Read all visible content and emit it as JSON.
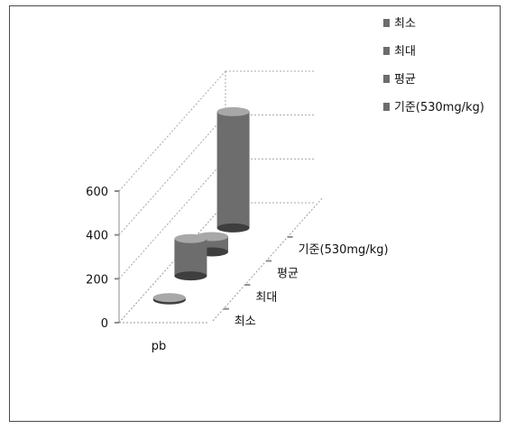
{
  "chart_data": {
    "type": "bar",
    "variant": "3d-cylinder",
    "categories": [
      "pb"
    ],
    "series": [
      {
        "name": "최소",
        "values": [
          10
        ]
      },
      {
        "name": "최대",
        "values": [
          170
        ]
      },
      {
        "name": "평균",
        "values": [
          70
        ]
      },
      {
        "name": "기준(530mg/kg)",
        "values": [
          530
        ]
      }
    ],
    "title": "",
    "xlabel": "",
    "ylabel": "",
    "ylim": [
      0,
      600
    ],
    "yticks": [
      0,
      200,
      400,
      600
    ],
    "depth_axis_labels": [
      "최소",
      "최대",
      "평균",
      "기준(530mg/kg)"
    ],
    "legend": "top-right",
    "grid": true,
    "colors": {
      "bar": "#6d6d6d",
      "bar_dark": "#3e3e3e",
      "bar_light": "#a8a8a8",
      "axis": "#999999"
    }
  }
}
